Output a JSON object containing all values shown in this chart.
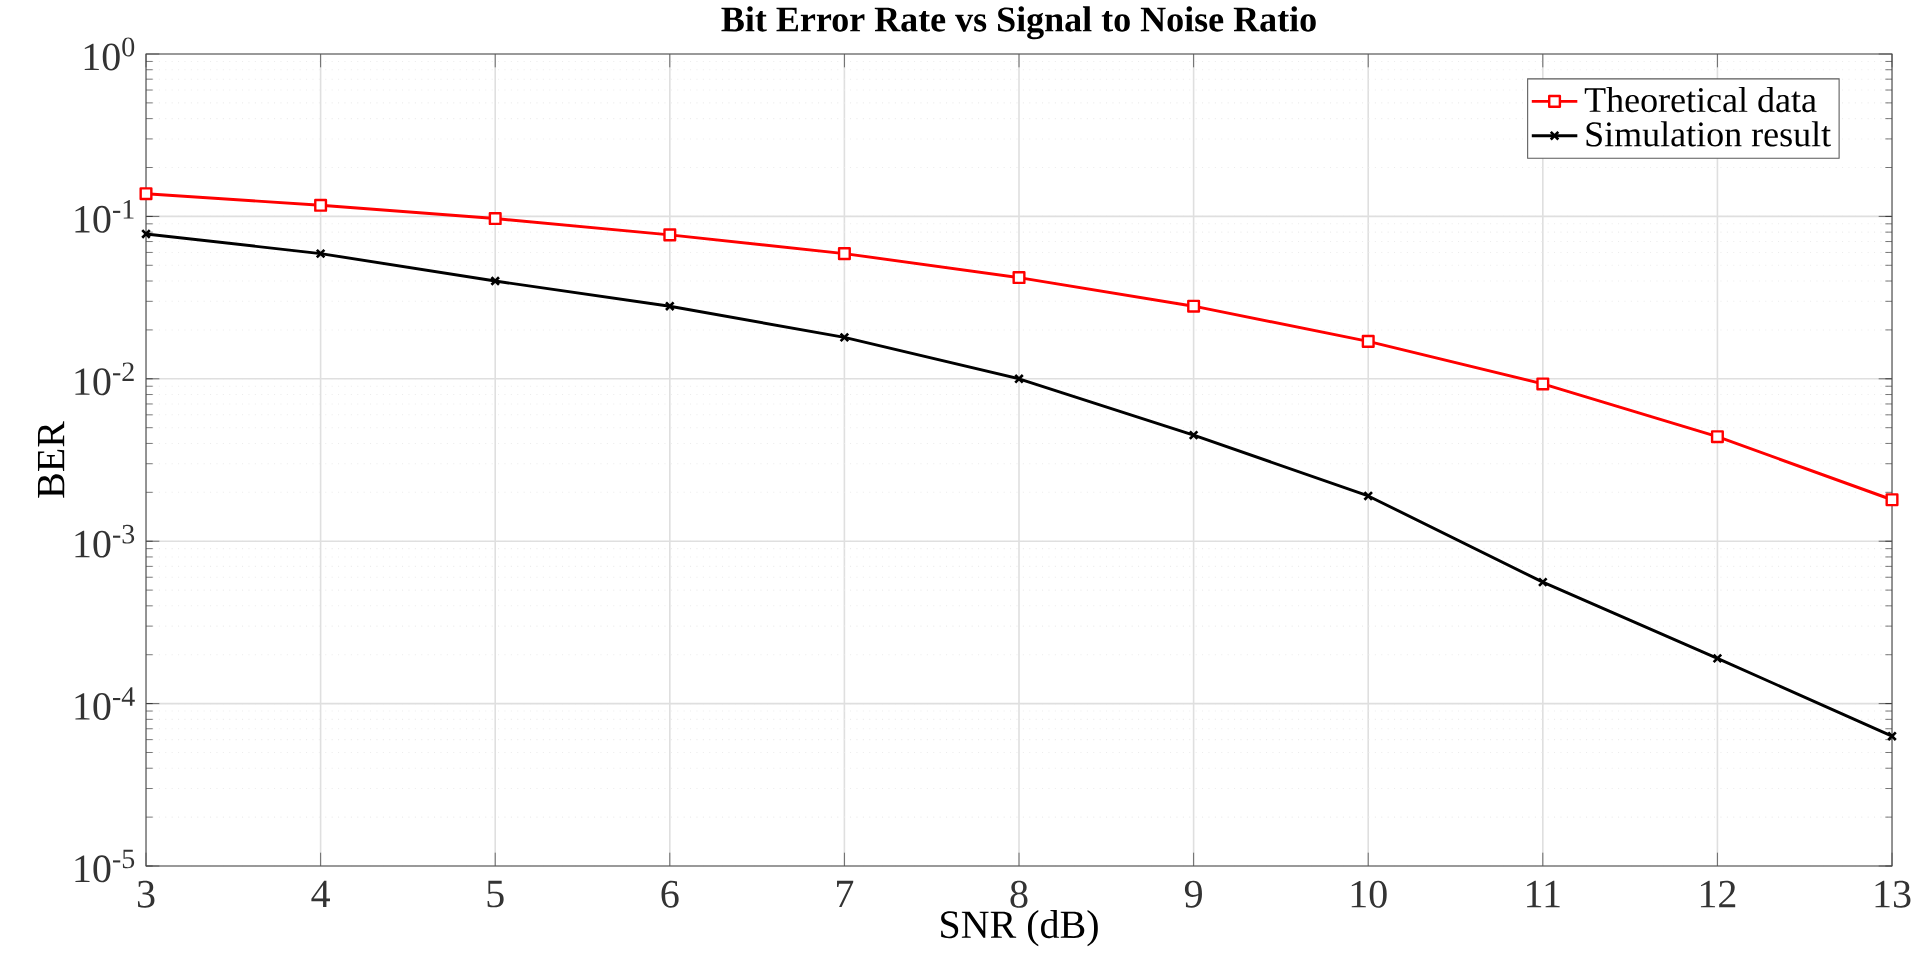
{
  "chart_data": {
    "type": "line",
    "title": "Bit Error Rate vs Signal to Noise Ratio",
    "xlabel": "SNR (dB)",
    "ylabel": "BER",
    "x": [
      3,
      4,
      5,
      6,
      7,
      8,
      9,
      10,
      11,
      12,
      13
    ],
    "series": [
      {
        "name": "Theoretical data",
        "color": "#ff0000",
        "marker": "square",
        "values": [
          0.138,
          0.117,
          0.097,
          0.077,
          0.059,
          0.042,
          0.028,
          0.017,
          0.0093,
          0.0044,
          0.0018
        ]
      },
      {
        "name": "Simulation result",
        "color": "#000000",
        "marker": "cross",
        "values": [
          0.078,
          0.059,
          0.04,
          0.028,
          0.018,
          0.01,
          0.0045,
          0.0019,
          0.00056,
          0.00019,
          6.3e-05
        ]
      }
    ],
    "log": "y",
    "xlim": [
      3,
      13
    ],
    "ylim": [
      1e-05,
      1
    ],
    "xticks": [
      3,
      4,
      5,
      6,
      7,
      8,
      9,
      10,
      11,
      12,
      13
    ],
    "yticks": [
      {
        "value": 1e-05,
        "label": "10$^{-5}$"
      },
      {
        "value": 0.0001,
        "label": "10$^{-4}$"
      },
      {
        "value": 0.001,
        "label": "10$^{-3}$"
      },
      {
        "value": 0.01,
        "label": "10$^{-2}$"
      },
      {
        "value": 0.1,
        "label": "10$^{-1}$"
      },
      {
        "value": 1,
        "label": "10$^{0}$"
      }
    ],
    "grid": true,
    "legend": "top right",
    "line_style": "solid"
  }
}
